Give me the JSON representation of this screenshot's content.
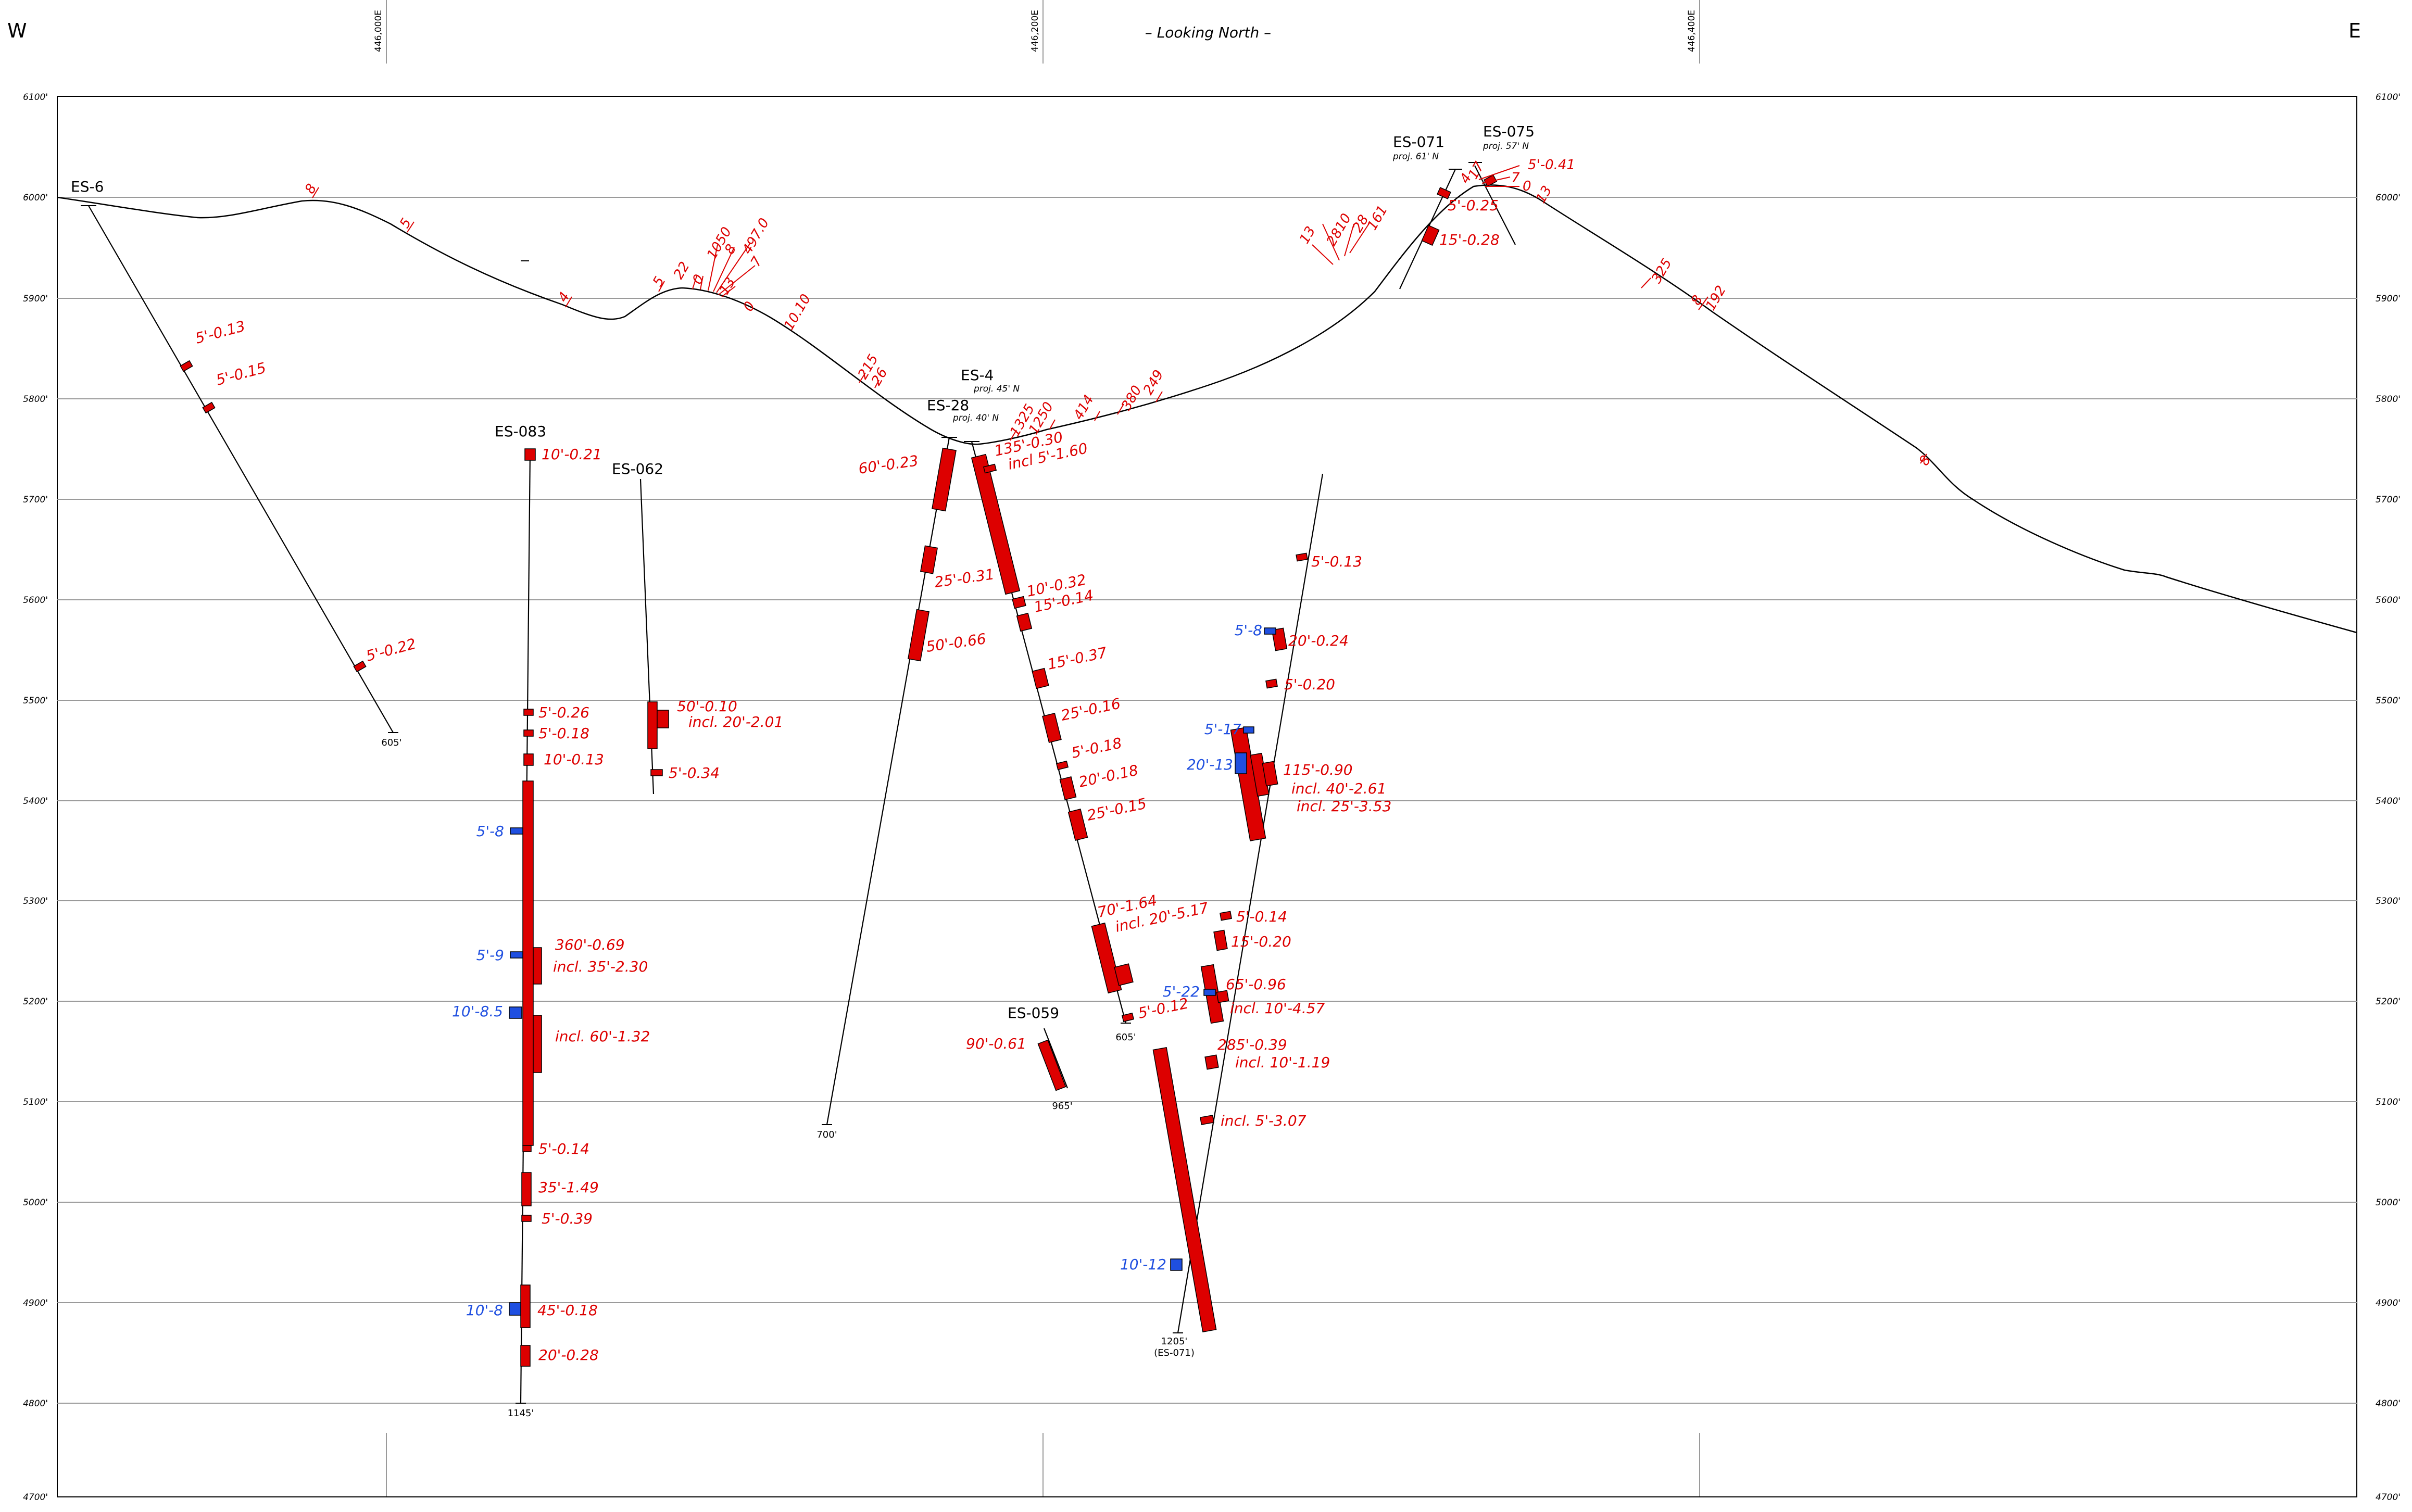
{
  "header": {
    "west": "W",
    "east": "E",
    "view": "– Looking North –",
    "eastings": [
      "446,000E",
      "446,200E",
      "446,400E"
    ]
  },
  "elevation_labels": [
    "6100'",
    "6000'",
    "5900'",
    "5800'",
    "5700'",
    "5600'",
    "5500'",
    "5400'",
    "5300'",
    "5200'",
    "5100'",
    "5000'",
    "4900'",
    "4800'",
    "4700'"
  ],
  "colors": {
    "assay_high": "#dd0000",
    "assay_low": "#1f4fe0",
    "line": "#000000",
    "grid": "#9a9a9a"
  },
  "holes": [
    {
      "id": "ES-6",
      "proj": "",
      "td": "605'"
    },
    {
      "id": "ES-083",
      "proj": "",
      "td": "1145'"
    },
    {
      "id": "ES-062",
      "proj": "",
      "td": ""
    },
    {
      "id": "ES-28",
      "proj": "proj. 40' N",
      "td": "700'"
    },
    {
      "id": "ES-4",
      "proj": "proj. 45' N",
      "td": "605'"
    },
    {
      "id": "ES-059",
      "proj": "",
      "td": "965'"
    },
    {
      "id": "ES-071",
      "proj": "proj. 61' N",
      "td": "1205'",
      "td2": "(ES-071)"
    },
    {
      "id": "ES-075",
      "proj": "proj. 57' N",
      "td": ""
    }
  ],
  "surface_samples": [
    "8",
    "5",
    "4",
    "5",
    "22",
    "0",
    "1050",
    "8",
    "497.0",
    "7",
    "13",
    "0",
    "10.10",
    "215",
    "26",
    "1325",
    "1250",
    "414",
    "380",
    "249",
    "13",
    "2810",
    "28",
    "161",
    "4",
    "17",
    "5'-0.41",
    "7",
    "0",
    "13",
    "325",
    "8",
    "192",
    "8"
  ],
  "intercepts": {
    "es6": [
      "5'-0.13",
      "5'-0.15",
      "5'-0.22"
    ],
    "es083": [
      "10'-0.21",
      "5'-0.26",
      "5'-0.18",
      "10'-0.13",
      "360'-0.69",
      "incl. 35'-2.30",
      "incl. 60'-1.32",
      "5'-0.14",
      "35'-1.49",
      "5'-0.39",
      "45'-0.18",
      "20'-0.28"
    ],
    "es083_blue": [
      "5'-8",
      "5'-9",
      "10'-8.5",
      "10'-8"
    ],
    "es062": [
      "50'-0.10",
      "incl. 20'-2.01",
      "5'-0.34"
    ],
    "es28": [
      "60'-0.23",
      "25'-0.31",
      "50'-0.66"
    ],
    "es4": [
      "135'-0.30",
      "incl 5'-1.60",
      "10'-0.32",
      "15'-0.14",
      "15'-0.37",
      "25'-0.16",
      "5'-0.18",
      "20'-0.18",
      "25'-0.15",
      "70'-1.64",
      "incl. 20'-5.17",
      "5'-0.12"
    ],
    "es059": [
      "90'-0.61"
    ],
    "es071": [
      "5'-0.25",
      "15'-0.28",
      "5'-0.13",
      "20'-0.24",
      "5'-0.20",
      "115'-0.90",
      "incl. 40'-2.61",
      "incl. 25'-3.53",
      "5'-0.14",
      "15'-0.20",
      "65'-0.96",
      "incl. 10'-4.57",
      "285'-0.39",
      "incl. 10'-1.19",
      "incl. 5'-3.07"
    ],
    "es071_blue": [
      "5'-8",
      "5'-17",
      "20'-13",
      "5'-22",
      "10'-12"
    ]
  }
}
